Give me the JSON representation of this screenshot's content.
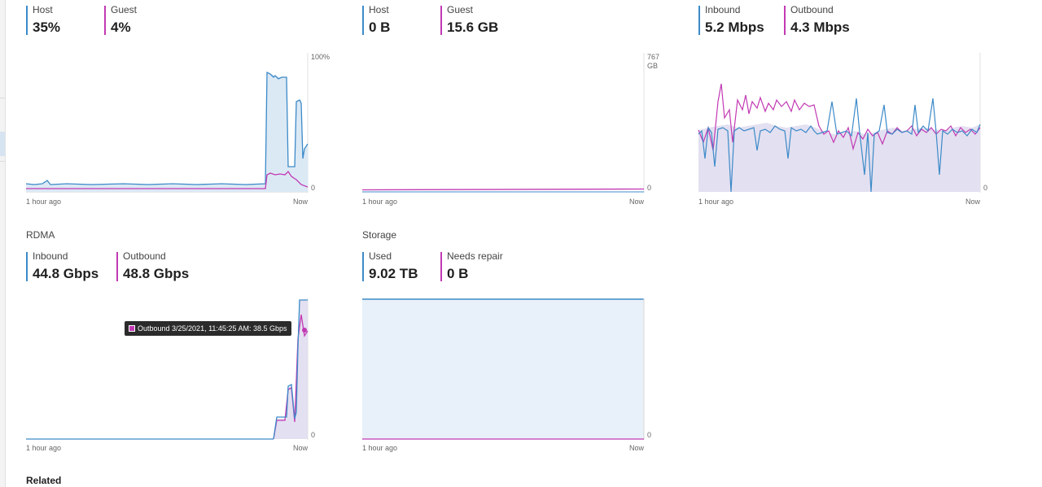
{
  "colors": {
    "blue": "#3c8ac8",
    "magenta": "#c239b3",
    "fill_blue": "#dbe9f5",
    "fill_lav": "#e3e0f1"
  },
  "cpu": {
    "host": {
      "label": "Host",
      "value": "35%"
    },
    "guest": {
      "label": "Guest",
      "value": "4%"
    },
    "y_max": "100%",
    "y_min": "0",
    "x_start": "1 hour ago",
    "x_end": "Now"
  },
  "memory": {
    "host": {
      "label": "Host",
      "value": "0 B"
    },
    "guest": {
      "label": "Guest",
      "value": "15.6 GB"
    },
    "y_max": "767",
    "y_unit": "GB",
    "y_min": "0",
    "x_start": "1 hour ago",
    "x_end": "Now"
  },
  "network": {
    "inbound": {
      "label": "Inbound",
      "value": "5.2 Mbps"
    },
    "outbound": {
      "label": "Outbound",
      "value": "4.3 Mbps"
    },
    "y_min": "0",
    "x_start": "1 hour ago",
    "x_end": "Now"
  },
  "rdma": {
    "title": "RDMA",
    "inbound": {
      "label": "Inbound",
      "value": "44.8 Gbps"
    },
    "outbound": {
      "label": "Outbound",
      "value": "48.8 Gbps"
    },
    "y_min": "0",
    "x_start": "1 hour ago",
    "x_end": "Now",
    "tooltip": "Outbound 3/25/2021, 11:45:25 AM: 38.5 Gbps"
  },
  "storage": {
    "title": "Storage",
    "used": {
      "label": "Used",
      "value": "9.02 TB"
    },
    "needs_repair": {
      "label": "Needs repair",
      "value": "0 B"
    },
    "y_min": "0",
    "x_start": "1 hour ago",
    "x_end": "Now"
  },
  "related": {
    "label": "Related"
  }
}
